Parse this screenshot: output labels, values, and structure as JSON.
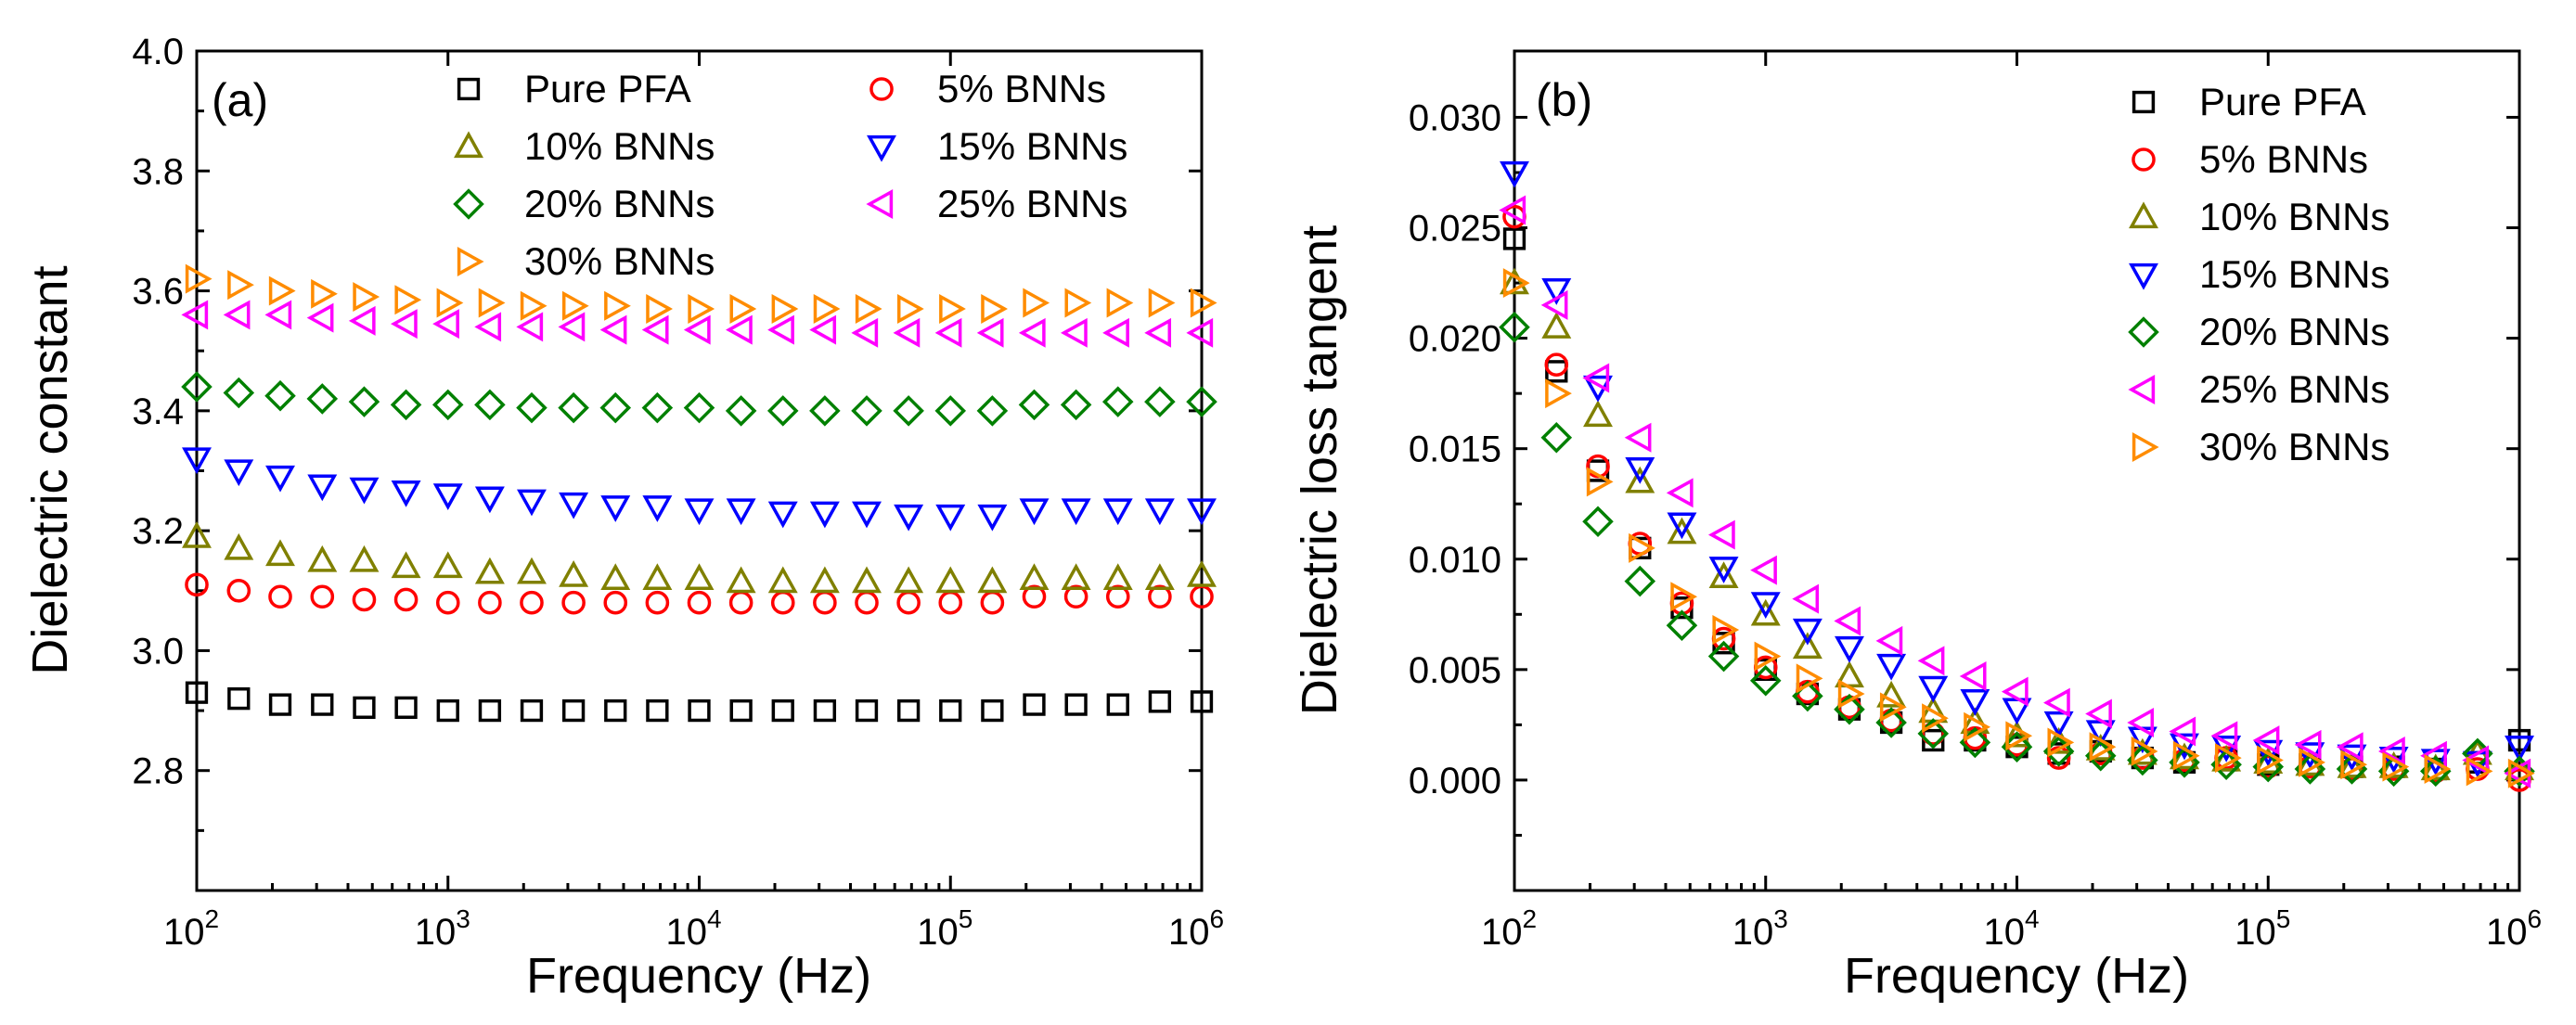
{
  "chart_data": [
    {
      "panel_label": "(a)",
      "type": "scatter",
      "xscale": "log",
      "xlim": [
        100,
        1000000
      ],
      "ylim": [
        2.6,
        4.0
      ],
      "xlabel": "Frequency (Hz)",
      "ylabel": "Dielectric constant",
      "yticks": [
        "2.8",
        "3.0",
        "3.2",
        "3.4",
        "3.6",
        "3.8",
        "4.0"
      ],
      "xticks": [
        {
          "base": "10",
          "exp": "2"
        },
        {
          "base": "10",
          "exp": "3"
        },
        {
          "base": "10",
          "exp": "4"
        },
        {
          "base": "10",
          "exp": "5"
        },
        {
          "base": "10",
          "exp": "6"
        }
      ],
      "legend_position": "top, two columns",
      "x": [
        100,
        147,
        215,
        316,
        464,
        681,
        1000,
        1468,
        2154,
        3162,
        4642,
        6813,
        10000,
        14678,
        21544,
        31623,
        46416,
        68129,
        100000,
        146780,
        215440,
        316230,
        464160,
        681290,
        1000000
      ],
      "series": [
        {
          "name": "Pure PFA",
          "marker": "square",
          "color": "#000000",
          "values": [
            2.93,
            2.92,
            2.91,
            2.91,
            2.905,
            2.905,
            2.9,
            2.9,
            2.9,
            2.9,
            2.9,
            2.9,
            2.9,
            2.9,
            2.9,
            2.9,
            2.9,
            2.9,
            2.9,
            2.9,
            2.91,
            2.91,
            2.91,
            2.915,
            2.915
          ]
        },
        {
          "name": "5% BNNs",
          "marker": "circle",
          "color": "#ff0000",
          "values": [
            3.11,
            3.1,
            3.09,
            3.09,
            3.085,
            3.085,
            3.08,
            3.08,
            3.08,
            3.08,
            3.08,
            3.08,
            3.08,
            3.08,
            3.08,
            3.08,
            3.08,
            3.08,
            3.08,
            3.08,
            3.09,
            3.09,
            3.09,
            3.09,
            3.09
          ]
        },
        {
          "name": "10% BNNs",
          "marker": "triangle-up",
          "color": "#808000",
          "values": [
            3.19,
            3.17,
            3.16,
            3.15,
            3.15,
            3.14,
            3.14,
            3.13,
            3.13,
            3.125,
            3.12,
            3.12,
            3.12,
            3.115,
            3.115,
            3.115,
            3.115,
            3.115,
            3.115,
            3.115,
            3.12,
            3.12,
            3.12,
            3.12,
            3.125
          ]
        },
        {
          "name": "15% BNNs",
          "marker": "triangle-down",
          "color": "#0000ff",
          "values": [
            3.32,
            3.3,
            3.29,
            3.275,
            3.27,
            3.265,
            3.26,
            3.255,
            3.25,
            3.245,
            3.24,
            3.24,
            3.235,
            3.235,
            3.23,
            3.23,
            3.23,
            3.225,
            3.225,
            3.225,
            3.235,
            3.235,
            3.235,
            3.235,
            3.235
          ]
        },
        {
          "name": "20% BNNs",
          "marker": "diamond",
          "color": "#008000",
          "values": [
            3.44,
            3.43,
            3.425,
            3.42,
            3.415,
            3.41,
            3.41,
            3.41,
            3.405,
            3.405,
            3.405,
            3.405,
            3.405,
            3.4,
            3.4,
            3.4,
            3.4,
            3.4,
            3.4,
            3.4,
            3.41,
            3.41,
            3.415,
            3.415,
            3.415
          ]
        },
        {
          "name": "25% BNNs",
          "marker": "triangle-left",
          "color": "#ff00ff",
          "values": [
            3.56,
            3.56,
            3.56,
            3.555,
            3.55,
            3.545,
            3.545,
            3.54,
            3.54,
            3.54,
            3.535,
            3.535,
            3.535,
            3.535,
            3.535,
            3.535,
            3.53,
            3.53,
            3.53,
            3.53,
            3.53,
            3.53,
            3.53,
            3.53,
            3.53
          ]
        },
        {
          "name": "30% BNNs",
          "marker": "triangle-right",
          "color": "#ff8c00",
          "values": [
            3.62,
            3.61,
            3.6,
            3.595,
            3.59,
            3.585,
            3.58,
            3.58,
            3.575,
            3.575,
            3.575,
            3.57,
            3.57,
            3.57,
            3.57,
            3.57,
            3.57,
            3.57,
            3.57,
            3.57,
            3.58,
            3.58,
            3.58,
            3.58,
            3.58
          ]
        }
      ]
    },
    {
      "panel_label": "(b)",
      "type": "scatter",
      "xscale": "log",
      "xlim": [
        100,
        1000000
      ],
      "ylim": [
        -0.005,
        0.033
      ],
      "xlabel": "Frequency (Hz)",
      "ylabel": "Dielectric loss tangent",
      "yticks": [
        "0.000",
        "0.005",
        "0.010",
        "0.015",
        "0.020",
        "0.025",
        "0.030"
      ],
      "xticks": [
        {
          "base": "10",
          "exp": "2"
        },
        {
          "base": "10",
          "exp": "3"
        },
        {
          "base": "10",
          "exp": "4"
        },
        {
          "base": "10",
          "exp": "5"
        },
        {
          "base": "10",
          "exp": "6"
        }
      ],
      "legend_position": "top-right, single column",
      "x": [
        100,
        147,
        215,
        316,
        464,
        681,
        1000,
        1468,
        2154,
        3162,
        4642,
        6813,
        10000,
        14678,
        21544,
        31623,
        46416,
        68129,
        100000,
        146780,
        215440,
        316230,
        464160,
        681290,
        1000000
      ],
      "series": [
        {
          "name": "Pure PFA",
          "marker": "square",
          "color": "#000000",
          "values": [
            0.0245,
            0.0185,
            0.014,
            0.0105,
            0.0078,
            0.0062,
            0.005,
            0.0039,
            0.0032,
            0.0026,
            0.0018,
            0.0018,
            0.0015,
            0.0012,
            0.0013,
            0.001,
            0.0008,
            0.0009,
            0.0007,
            0.0007,
            0.0006,
            0.0006,
            0.0005,
            0.0008,
            0.0018
          ]
        },
        {
          "name": "5% BNNs",
          "marker": "circle",
          "color": "#ff0000",
          "values": [
            0.0255,
            0.0188,
            0.0142,
            0.0107,
            0.008,
            0.0064,
            0.0051,
            0.004,
            0.0033,
            0.0027,
            0.0021,
            0.0019,
            0.0016,
            0.001,
            0.0012,
            0.001,
            0.0009,
            0.001,
            0.0006,
            0.0006,
            0.0005,
            0.0005,
            0.0004,
            0.0005,
            0.0
          ]
        },
        {
          "name": "10% BNNs",
          "marker": "triangle-up",
          "color": "#808000",
          "values": [
            0.0225,
            0.0205,
            0.0165,
            0.0135,
            0.0112,
            0.0092,
            0.0075,
            0.006,
            0.0047,
            0.0038,
            0.0031,
            0.0026,
            0.002,
            0.0017,
            0.0014,
            0.0012,
            0.001,
            0.0009,
            0.0008,
            0.0007,
            0.0006,
            0.0006,
            0.0005,
            0.0012,
            0.0005
          ]
        },
        {
          "name": "15% BNNs",
          "marker": "triangle-down",
          "color": "#0000ff",
          "values": [
            0.0275,
            0.0222,
            0.0178,
            0.0141,
            0.0116,
            0.0096,
            0.008,
            0.0068,
            0.006,
            0.0052,
            0.0042,
            0.0036,
            0.0032,
            0.0026,
            0.0022,
            0.0019,
            0.0016,
            0.0015,
            0.0013,
            0.0012,
            0.0011,
            0.001,
            0.0009,
            0.0008,
            0.0015
          ]
        },
        {
          "name": "20% BNNs",
          "marker": "diamond",
          "color": "#008000",
          "values": [
            0.0205,
            0.0155,
            0.0117,
            0.009,
            0.007,
            0.0056,
            0.0045,
            0.0038,
            0.0032,
            0.0026,
            0.0021,
            0.0017,
            0.0015,
            0.0013,
            0.0011,
            0.0009,
            0.0008,
            0.0007,
            0.0006,
            0.0005,
            0.0005,
            0.0004,
            0.0004,
            0.0012,
            0.0004
          ]
        },
        {
          "name": "25% BNNs",
          "marker": "triangle-left",
          "color": "#ff00ff",
          "values": [
            0.0258,
            0.0215,
            0.0182,
            0.0155,
            0.013,
            0.0111,
            0.0095,
            0.0082,
            0.0072,
            0.0063,
            0.0054,
            0.0047,
            0.004,
            0.0035,
            0.003,
            0.0026,
            0.0022,
            0.002,
            0.0018,
            0.0016,
            0.0015,
            0.0013,
            0.0011,
            0.0009,
            0.0003
          ]
        },
        {
          "name": "30% BNNs",
          "marker": "triangle-right",
          "color": "#ff8c00",
          "values": [
            0.0225,
            0.0175,
            0.0135,
            0.0105,
            0.0083,
            0.0068,
            0.0056,
            0.0046,
            0.0039,
            0.0033,
            0.0028,
            0.0024,
            0.002,
            0.0017,
            0.0015,
            0.0013,
            0.0011,
            0.001,
            0.0009,
            0.0008,
            0.0007,
            0.0006,
            0.0005,
            0.0004,
            0.0003
          ]
        }
      ]
    }
  ]
}
